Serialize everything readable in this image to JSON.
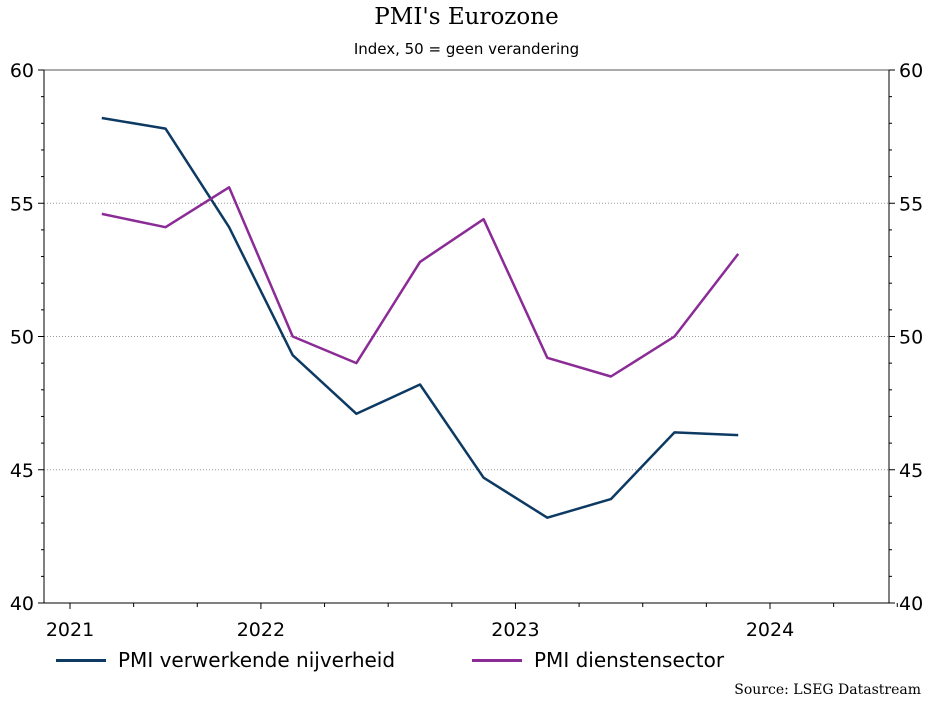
{
  "chart_data": {
    "type": "line",
    "title": "PMI's Eurozone",
    "subtitle": "Index, 50 = geen verandering",
    "ylim": [
      40,
      60
    ],
    "yticks": [
      40,
      45,
      50,
      55,
      60
    ],
    "y_axis_sides": [
      "left",
      "right"
    ],
    "grid": "horizontal dotted",
    "xlim": [
      2021,
      2024.5
    ],
    "xtick_labels": [
      {
        "label": "2021",
        "pos": 2021.0
      },
      {
        "label": "2022",
        "pos": 2021.75
      },
      {
        "label": "2023",
        "pos": 2022.75
      },
      {
        "label": "2024",
        "pos": 2023.75
      }
    ],
    "minor_ticks": [
      2021.25,
      2021.5,
      2022.0,
      2022.25,
      2022.5,
      2023.0,
      2023.25,
      2023.5,
      2024.0,
      2024.25
    ],
    "x": [
      2021.125,
      2021.375,
      2021.625,
      2021.875,
      2022.125,
      2022.375,
      2022.625,
      2022.875,
      2023.125,
      2023.375,
      2023.625,
      2023.875
    ],
    "series": [
      {
        "name": "PMI verwerkende nijverheid",
        "color": "#0d3a63",
        "values": [
          58.2,
          57.8,
          54.1,
          49.3,
          47.1,
          48.2,
          44.7,
          43.2,
          43.9,
          46.4,
          46.3,
          null
        ]
      },
      {
        "name": "PMI dienstensector",
        "color": "#8b2b96",
        "values": [
          54.6,
          54.1,
          55.6,
          50.0,
          49.0,
          52.8,
          54.4,
          49.2,
          48.5,
          50.0,
          53.1,
          null
        ]
      }
    ],
    "legend_placement": "bottom",
    "source": "Source: LSEG Datastream"
  }
}
